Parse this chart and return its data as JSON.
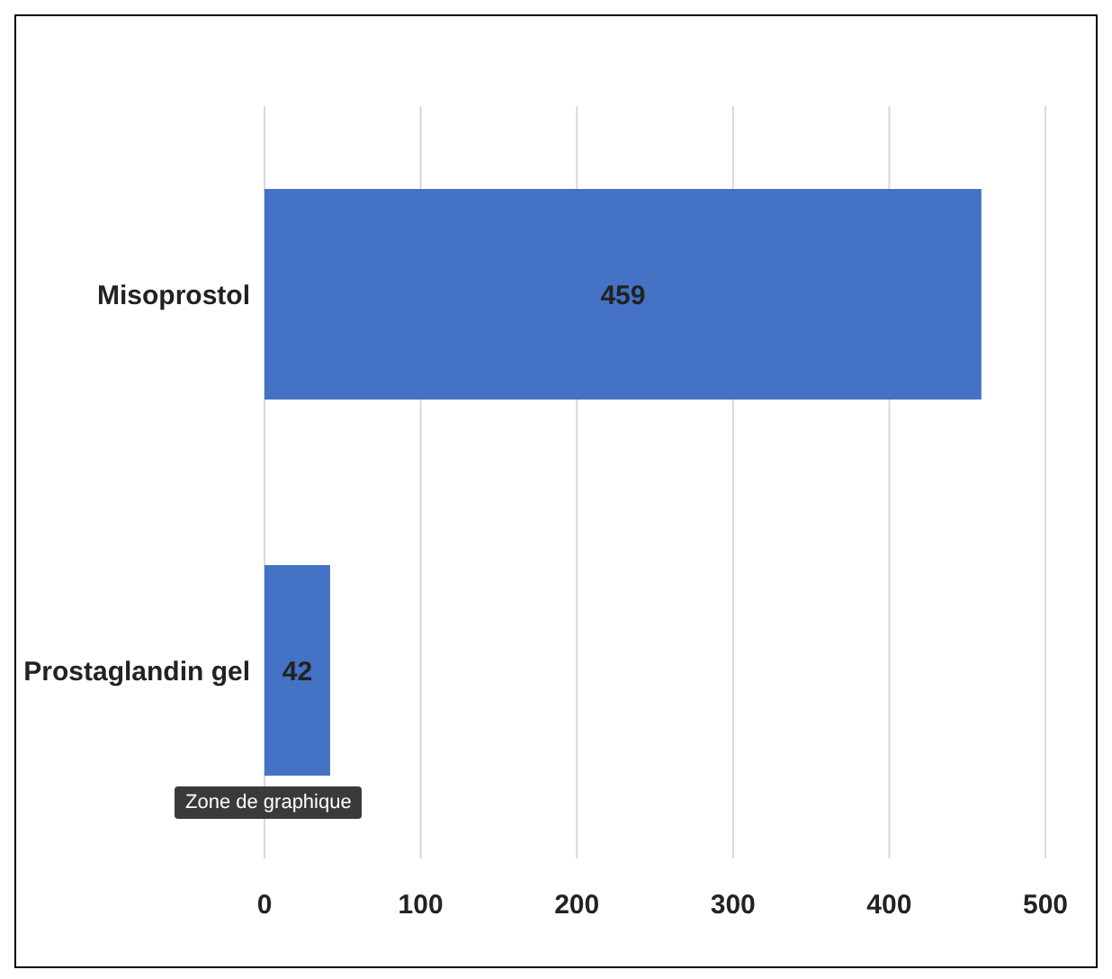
{
  "chart_data": {
    "type": "bar",
    "orientation": "horizontal",
    "categories": [
      "Misoprostol",
      "Prostaglandin gel"
    ],
    "values": [
      459,
      42
    ],
    "color": "#4472c4",
    "xlim": [
      0,
      500
    ],
    "xticks": [
      0,
      100,
      200,
      300,
      400,
      500
    ],
    "grid": "x",
    "data_labels": true,
    "annotations": [
      "Zone de graphique"
    ]
  }
}
